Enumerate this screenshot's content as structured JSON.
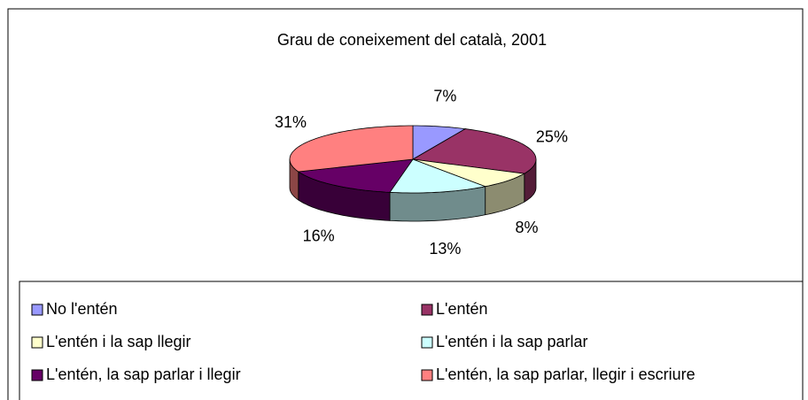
{
  "chart_data": {
    "type": "pie3d",
    "title": "Grau de coneixement del català, 2001",
    "categories": [
      "No l'entén",
      "L'entén",
      "L'entén i la sap llegir",
      "L'entén i la sap parlar",
      "L'entén, la sap parlar i llegir",
      "L'entén, la sap parlar, llegir i escriure"
    ],
    "values": [
      7,
      25,
      8,
      13,
      16,
      31
    ],
    "value_labels": [
      "7%",
      "25%",
      "8%",
      "13%",
      "16%",
      "31%"
    ],
    "colors": [
      "#9999ff",
      "#993366",
      "#ffffcc",
      "#ccffff",
      "#660066",
      "#ff8080"
    ],
    "legend": "bottom"
  }
}
